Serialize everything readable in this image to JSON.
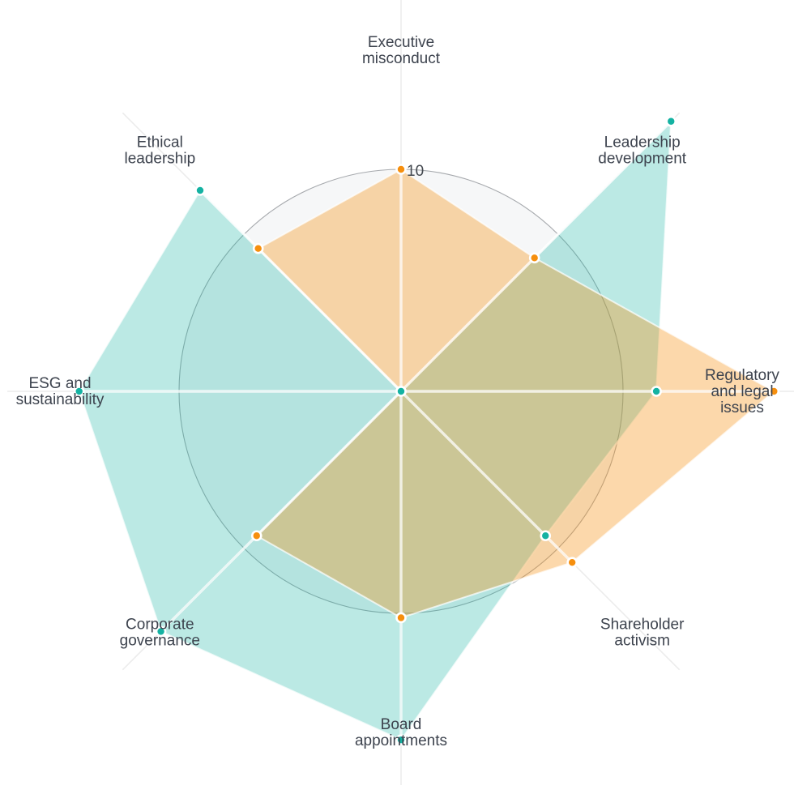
{
  "chart_data": {
    "type": "radar",
    "title": "",
    "legend": "none",
    "angular_start": "top",
    "direction": "clockwise",
    "categories": [
      "Executive misconduct",
      "Leadership development",
      "Regulatory and legal issues",
      "Shareholder activism",
      "Board appointments",
      "Corporate governance",
      "ESG and sustainability",
      "Ethical leadership"
    ],
    "category_label_lines": [
      [
        "Executive",
        "misconduct"
      ],
      [
        "Leadership",
        "development"
      ],
      [
        "Regulatory",
        "and legal",
        "issues"
      ],
      [
        "Shareholder",
        "activism"
      ],
      [
        "Board",
        "appointments"
      ],
      [
        "Corporate",
        "governance"
      ],
      [
        "ESG and",
        "sustainability"
      ],
      [
        "Ethical",
        "leadership"
      ]
    ],
    "series": [
      {
        "name": "teal-series",
        "marker_color": "#14b2a2",
        "fill_color": "rgba(20,178,162,0.29)",
        "values": [
          0,
          17.2,
          11.5,
          9.2,
          15.7,
          15.3,
          14.5,
          12.8
        ]
      },
      {
        "name": "orange-series",
        "marker_color": "#f68f0e",
        "fill_color": "rgba(246,143,14,0.35)",
        "values": [
          10,
          8.5,
          16.8,
          10.9,
          10.2,
          9.2,
          0,
          9.1
        ]
      }
    ],
    "radial_axis": {
      "tick_values": [
        10
      ],
      "tick_labels": [
        "10"
      ],
      "range": [
        0,
        17.5
      ],
      "gridline_shown_at": 10
    },
    "style": {
      "grid_circle_color": "#a6a9ad",
      "plot_bg_circle_color": "#f6f7f8",
      "under_spoke_color": "#ececec",
      "over_spoke_color": "rgba(255,255,255,0.75)",
      "polygon_edge_color": "rgba(255,255,255,0.7)",
      "label_color": "#3d434e",
      "tick_color": "#43484f",
      "background": "#ffffff"
    }
  }
}
